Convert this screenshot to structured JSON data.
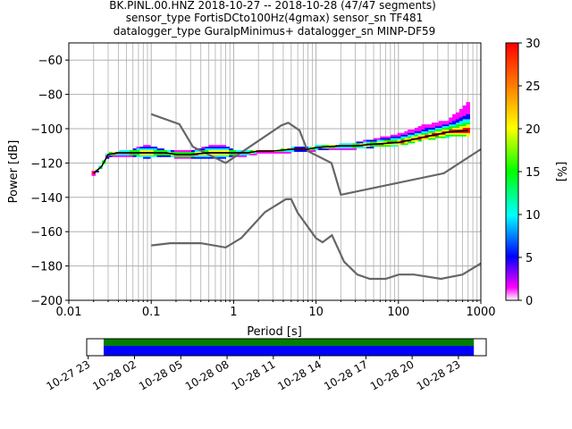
{
  "title": {
    "lines": [
      "BK.PINL.00.HNZ   2018-10-27 -- 2018-10-28  (47/47 segments)",
      "sensor_type FortisDCto100Hz(4gmax) sensor_sn TF481",
      "datalogger_type GuralpMinimus+ datalogger_sn MINP-DF59"
    ]
  },
  "chart_data": [
    {
      "type": "heatmap",
      "xlabel": "Period [s]",
      "ylabel": "Power [dB]",
      "xscale": "log",
      "xlim": [
        0.01,
        1000
      ],
      "ylim": [
        -200,
        -50
      ],
      "grid": true,
      "x_tick_labels": [
        "0.01",
        "0.1",
        "1",
        "10",
        "100",
        "1000"
      ],
      "x_ticks": [
        0.01,
        0.1,
        1,
        10,
        100,
        1000
      ],
      "y_ticks": [
        -60,
        -80,
        -100,
        -120,
        -140,
        -160,
        -180,
        -200
      ],
      "y_tick_labels": [
        "−60",
        "−80",
        "−100",
        "−120",
        "−140",
        "−160",
        "−180",
        "−200"
      ],
      "colorbar": {
        "label": "[%]",
        "range": [
          0,
          30
        ],
        "ticks": [
          0,
          5,
          10,
          15,
          20,
          25,
          30
        ],
        "tick_labels": [
          "0",
          "5",
          "10",
          "15",
          "20",
          "25",
          "30"
        ],
        "colors": [
          "#ffffff",
          "#ff00ff",
          "#0000ff",
          "#00ffff",
          "#00ff00",
          "#ffff00",
          "#ff8000",
          "#ff0000"
        ]
      },
      "mean_curve": {
        "color": "#000000",
        "x": [
          0.02,
          0.025,
          0.03,
          0.04,
          0.06,
          0.1,
          0.15,
          0.2,
          0.3,
          0.5,
          0.8,
          1,
          1.5,
          2,
          3,
          5,
          8,
          10,
          20,
          30,
          50,
          100,
          200,
          400,
          700
        ],
        "y": [
          -126,
          -122,
          -115,
          -114,
          -114,
          -114,
          -114,
          -115,
          -115,
          -114,
          -114,
          -114,
          -114,
          -113,
          -113,
          -112,
          -112,
          -111,
          -110,
          -110,
          -109,
          -108,
          -105,
          -102,
          -101
        ]
      },
      "psd_spread": {
        "x": [
          0.02,
          0.025,
          0.03,
          0.04,
          0.06,
          0.08,
          0.1,
          0.15,
          0.2,
          0.3,
          0.5,
          0.8,
          1,
          1.5,
          2,
          3,
          5,
          8,
          10,
          20,
          30,
          50,
          100,
          200,
          400,
          700
        ],
        "y_upper": [
          -125,
          -121,
          -114,
          -113,
          -112,
          -110,
          -110,
          -112,
          -113,
          -113,
          -110,
          -110,
          -112,
          -113,
          -113,
          -113,
          -111,
          -111,
          -110,
          -109,
          -108,
          -106,
          -103,
          -98,
          -95,
          -85
        ],
        "y_lower": [
          -127,
          -123,
          -117,
          -116,
          -116,
          -117,
          -117,
          -116,
          -117,
          -117,
          -117,
          -117,
          -116,
          -116,
          -115,
          -114,
          -114,
          -113,
          -113,
          -112,
          -112,
          -111,
          -110,
          -107,
          -105,
          -104
        ]
      },
      "noise_models": [
        {
          "color": "#666666",
          "x": [
            0.1,
            0.22,
            0.32,
            0.8,
            3.8,
            4.6,
            6.3,
            7.9,
            15.4,
            20,
            354.8,
            1000
          ],
          "y": [
            -91.5,
            -97.4,
            -110.5,
            -120,
            -98,
            -96.5,
            -101,
            -113,
            -120,
            -138.5,
            -126,
            -112
          ]
        },
        {
          "color": "#666666",
          "x": [
            0.1,
            0.17,
            0.4,
            0.8,
            1.24,
            2.4,
            4.3,
            5,
            6,
            10,
            12,
            15.6,
            21.9,
            31.6,
            45,
            70,
            101,
            154,
            328,
            600,
            1000
          ],
          "y": [
            -168,
            -166.7,
            -166.7,
            -169.2,
            -163.7,
            -148.6,
            -141.1,
            -141.1,
            -149,
            -163.8,
            -166.2,
            -162.1,
            -177.5,
            -185,
            -187.5,
            -187.5,
            -185,
            -185,
            -187.5,
            -185,
            -178.5
          ]
        }
      ]
    },
    {
      "type": "area",
      "title": "",
      "x_tick_labels": [
        "10-27 23",
        "10-28 02",
        "10-28 05",
        "10-28 08",
        "10-28 11",
        "10-28 14",
        "10-28 17",
        "10-28 20",
        "10-28 23"
      ],
      "x_ticks_hours": [
        23,
        26,
        29,
        32,
        35,
        38,
        41,
        44,
        47
      ],
      "xlim_hours": [
        22.9,
        48.8
      ],
      "bands": [
        {
          "name": "",
          "color": "#008000",
          "start_hour": 24.0,
          "end_hour": 48.0
        },
        {
          "name": "",
          "color": "#0000ff",
          "start_hour": 24.0,
          "end_hour": 48.0
        }
      ]
    }
  ]
}
